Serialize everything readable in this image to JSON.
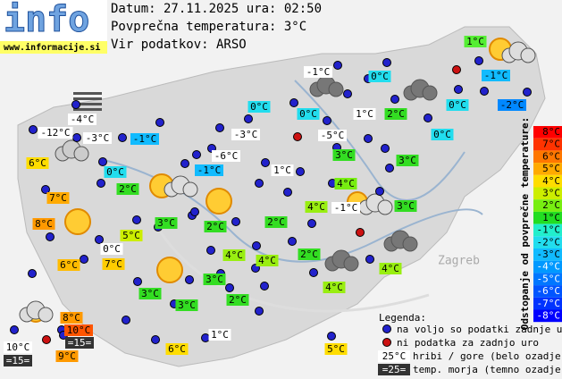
{
  "header": {
    "logo": "info",
    "site": "www.informacije.si",
    "date_line": "Datum: 27.11.2025 ura: 02:50",
    "average": "Povprečna temperatura: 3°C",
    "source": "Vir podatkov: ARSO"
  },
  "map": {
    "places": [
      "Zagreb"
    ],
    "stations": [
      {
        "text": "1°C",
        "bg": "#55ee33"
      },
      {
        "text": "-1°C",
        "bg": "#ffffff"
      },
      {
        "text": "0°C",
        "bg": "#22ddee"
      },
      {
        "text": "-1°C",
        "bg": "#11bbff"
      },
      {
        "text": "0°C",
        "bg": "#22ddee"
      },
      {
        "text": "0°C",
        "bg": "#22ddee"
      },
      {
        "text": "1°C",
        "bg": "#ffffff"
      },
      {
        "text": "2°C",
        "bg": "#33dd22"
      },
      {
        "text": "0°C",
        "bg": "#22ddee"
      },
      {
        "text": "-2°C",
        "bg": "#0088ff"
      },
      {
        "text": "-4°C",
        "bg": "#ffffff"
      },
      {
        "text": "-12°C",
        "bg": "#ffffff"
      },
      {
        "text": "-3°C",
        "bg": "#ffffff"
      },
      {
        "text": "-1°C",
        "bg": "#11bbff"
      },
      {
        "text": "-3°C",
        "bg": "#ffffff"
      },
      {
        "text": "-5°C",
        "bg": "#ffffff"
      },
      {
        "text": "0°C",
        "bg": "#22ddee"
      },
      {
        "text": "6°C",
        "bg": "#ffdd00"
      },
      {
        "text": "-6°C",
        "bg": "#ffffff"
      },
      {
        "text": "3°C",
        "bg": "#33dd22"
      },
      {
        "text": "3°C",
        "bg": "#33dd22"
      },
      {
        "text": "0°C",
        "bg": "#22ddee"
      },
      {
        "text": "-1°C",
        "bg": "#11bbff"
      },
      {
        "text": "1°C",
        "bg": "#ffffff"
      },
      {
        "text": "2°C",
        "bg": "#33dd22"
      },
      {
        "text": "4°C",
        "bg": "#77ee11"
      },
      {
        "text": "7°C",
        "bg": "#ffaa00"
      },
      {
        "text": "4°C",
        "bg": "#99ee11"
      },
      {
        "text": "-1°C",
        "bg": "#ffffff"
      },
      {
        "text": "3°C",
        "bg": "#33dd22"
      },
      {
        "text": "3°C",
        "bg": "#33dd22"
      },
      {
        "text": "2°C",
        "bg": "#33dd22"
      },
      {
        "text": "2°C",
        "bg": "#33dd22"
      },
      {
        "text": "8°C",
        "bg": "#ff9900"
      },
      {
        "text": "5°C",
        "bg": "#ccee00"
      },
      {
        "text": "0°C",
        "bg": "#ffffff"
      },
      {
        "text": "4°C",
        "bg": "#99ee11"
      },
      {
        "text": "4°C",
        "bg": "#99ee11"
      },
      {
        "text": "2°C",
        "bg": "#33dd22"
      },
      {
        "text": "6°C",
        "bg": "#ffbb00"
      },
      {
        "text": "7°C",
        "bg": "#ffcc00"
      },
      {
        "text": "4°C",
        "bg": "#99ee11"
      },
      {
        "text": "3°C",
        "bg": "#33dd22"
      },
      {
        "text": "3°C",
        "bg": "#33dd22"
      },
      {
        "text": "3°C",
        "bg": "#33dd22"
      },
      {
        "text": "2°C",
        "bg": "#33dd22"
      },
      {
        "text": "4°C",
        "bg": "#99ee11"
      },
      {
        "text": "8°C",
        "bg": "#ff9900"
      },
      {
        "text": "10°C",
        "bg": "#ff5500"
      },
      {
        "text": "=15=",
        "bg": "#333333"
      },
      {
        "text": "10°C",
        "bg": "#ffffff"
      },
      {
        "text": "9°C",
        "bg": "#ff9900"
      },
      {
        "text": "=15=",
        "bg": "#333333"
      },
      {
        "text": "1°C",
        "bg": "#ffffff"
      },
      {
        "text": "6°C",
        "bg": "#ffdd00"
      },
      {
        "text": "5°C",
        "bg": "#ffdd00"
      }
    ]
  },
  "scale": {
    "title": "Odstopanje od povprečne temperature:",
    "items": [
      {
        "text": "8°C",
        "color": "#ff0000"
      },
      {
        "text": "7°C",
        "color": "#ff3300"
      },
      {
        "text": "6°C",
        "color": "#ff7700"
      },
      {
        "text": "5°C",
        "color": "#ffaa00"
      },
      {
        "text": "4°C",
        "color": "#ffdd00"
      },
      {
        "text": "3°C",
        "color": "#ccee00"
      },
      {
        "text": "2°C",
        "color": "#77ee11"
      },
      {
        "text": "1°C",
        "color": "#22dd22"
      },
      {
        "text": "-1°C",
        "color": "#22eecc"
      },
      {
        "text": "-2°C",
        "color": "#22ddee"
      },
      {
        "text": "-3°C",
        "color": "#11bbff"
      },
      {
        "text": "-4°C",
        "color": "#0099ff"
      },
      {
        "text": "-5°C",
        "color": "#0077ff"
      },
      {
        "text": "-6°C",
        "color": "#0055ff"
      },
      {
        "text": "-7°C",
        "color": "#0033ff"
      },
      {
        "text": "-8°C",
        "color": "#0000ff"
      }
    ]
  },
  "legend": {
    "title": "Legenda:",
    "available": "na voljo so podatki zadnje ure",
    "missing": "ni podatka za zadnjo uro",
    "hill_sample": "25°C",
    "hill_text": "hribi / gore (belo ozadje)",
    "sea_sample": "=25=",
    "sea_text": "temp. morja (temno ozadje)"
  }
}
